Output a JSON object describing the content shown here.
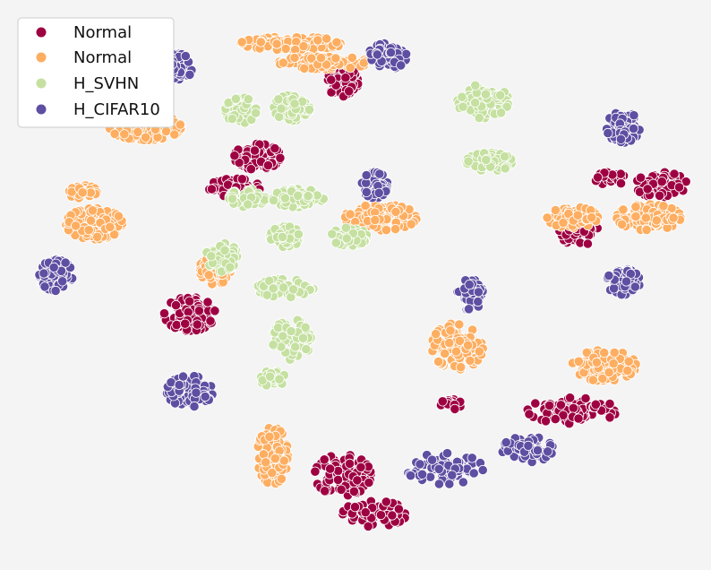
{
  "chart_data": {
    "type": "scatter",
    "title": "",
    "xlabel": "",
    "ylabel": "",
    "grid": false,
    "axes_visible": false,
    "legend_placement": "top-left",
    "background": "#f4f4f4",
    "series": [
      {
        "name": "Normal",
        "color": "#9e0142",
        "clusters": [
          {
            "cx": -0.93,
            "cy": 0.87,
            "rx": 0.12,
            "ry": 0.05,
            "n": 55
          },
          {
            "cx": 0.45,
            "cy": 0.7,
            "rx": 0.12,
            "ry": 0.12,
            "n": 80
          },
          {
            "cx": -0.22,
            "cy": 0.12,
            "rx": 0.18,
            "ry": 0.1,
            "n": 110
          },
          {
            "cx": -0.4,
            "cy": -0.12,
            "rx": 0.2,
            "ry": 0.07,
            "n": 70
          },
          {
            "cx": 2.3,
            "cy": -0.45,
            "rx": 0.15,
            "ry": 0.12,
            "n": 70
          },
          {
            "cx": 2.55,
            "cy": -0.05,
            "rx": 0.12,
            "ry": 0.05,
            "n": 35
          },
          {
            "cx": 2.95,
            "cy": -0.1,
            "rx": 0.2,
            "ry": 0.1,
            "n": 60
          },
          {
            "cx": -0.75,
            "cy": -1.1,
            "rx": 0.2,
            "ry": 0.13,
            "n": 100
          },
          {
            "cx": 1.3,
            "cy": -1.8,
            "rx": 0.08,
            "ry": 0.04,
            "n": 25
          },
          {
            "cx": 2.25,
            "cy": -1.85,
            "rx": 0.35,
            "ry": 0.1,
            "n": 95
          },
          {
            "cx": 0.45,
            "cy": -2.35,
            "rx": 0.22,
            "ry": 0.16,
            "n": 100
          },
          {
            "cx": 0.7,
            "cy": -2.65,
            "rx": 0.25,
            "ry": 0.1,
            "n": 60
          }
        ]
      },
      {
        "name": "Normal",
        "color": "#fdae61",
        "clusters": [
          {
            "cx": 0.05,
            "cy": 1.0,
            "rx": 0.4,
            "ry": 0.05,
            "n": 110
          },
          {
            "cx": 0.3,
            "cy": 0.85,
            "rx": 0.35,
            "ry": 0.05,
            "n": 90
          },
          {
            "cx": -1.1,
            "cy": 0.35,
            "rx": 0.28,
            "ry": 0.1,
            "n": 130
          },
          {
            "cx": 0.75,
            "cy": -0.35,
            "rx": 0.28,
            "ry": 0.1,
            "n": 100
          },
          {
            "cx": -1.6,
            "cy": -0.15,
            "rx": 0.12,
            "ry": 0.05,
            "n": 40
          },
          {
            "cx": -1.5,
            "cy": -0.4,
            "rx": 0.22,
            "ry": 0.12,
            "n": 120
          },
          {
            "cx": 2.25,
            "cy": -0.35,
            "rx": 0.2,
            "ry": 0.08,
            "n": 80
          },
          {
            "cx": 2.85,
            "cy": -0.35,
            "rx": 0.25,
            "ry": 0.1,
            "n": 110
          },
          {
            "cx": -0.55,
            "cy": -0.75,
            "rx": 0.12,
            "ry": 0.12,
            "n": 80
          },
          {
            "cx": 1.35,
            "cy": -1.35,
            "rx": 0.2,
            "ry": 0.18,
            "n": 110
          },
          {
            "cx": 2.5,
            "cy": -1.5,
            "rx": 0.25,
            "ry": 0.12,
            "n": 100
          },
          {
            "cx": -0.1,
            "cy": -2.2,
            "rx": 0.12,
            "ry": 0.22,
            "n": 90
          }
        ]
      },
      {
        "name": "H_SVHN",
        "color": "#c5e0a0",
        "clusters": [
          {
            "cx": -0.35,
            "cy": 0.48,
            "rx": 0.12,
            "ry": 0.1,
            "n": 70
          },
          {
            "cx": 0.05,
            "cy": 0.5,
            "rx": 0.14,
            "ry": 0.1,
            "n": 70
          },
          {
            "cx": 1.55,
            "cy": 0.55,
            "rx": 0.2,
            "ry": 0.13,
            "n": 90
          },
          {
            "cx": 1.6,
            "cy": 0.08,
            "rx": 0.18,
            "ry": 0.07,
            "n": 70
          },
          {
            "cx": -0.3,
            "cy": -0.2,
            "rx": 0.14,
            "ry": 0.07,
            "n": 60
          },
          {
            "cx": 0.0,
            "cy": -0.5,
            "rx": 0.12,
            "ry": 0.08,
            "n": 60
          },
          {
            "cx": 0.1,
            "cy": -0.2,
            "rx": 0.2,
            "ry": 0.07,
            "n": 80
          },
          {
            "cx": 0.5,
            "cy": -0.5,
            "rx": 0.14,
            "ry": 0.07,
            "n": 50
          },
          {
            "cx": -0.5,
            "cy": -0.65,
            "rx": 0.12,
            "ry": 0.12,
            "n": 60
          },
          {
            "cx": 0.0,
            "cy": -0.9,
            "rx": 0.22,
            "ry": 0.07,
            "n": 60
          },
          {
            "cx": 0.05,
            "cy": -1.3,
            "rx": 0.15,
            "ry": 0.16,
            "n": 60
          },
          {
            "cx": -0.1,
            "cy": -1.6,
            "rx": 0.1,
            "ry": 0.06,
            "n": 25
          }
        ]
      },
      {
        "name": "H_CIFAR10",
        "color": "#5e4fa2",
        "clusters": [
          {
            "cx": -0.85,
            "cy": 0.82,
            "rx": 0.13,
            "ry": 0.1,
            "n": 80
          },
          {
            "cx": 0.8,
            "cy": 0.9,
            "rx": 0.15,
            "ry": 0.1,
            "n": 80
          },
          {
            "cx": 2.65,
            "cy": 0.35,
            "rx": 0.13,
            "ry": 0.12,
            "n": 70
          },
          {
            "cx": 0.7,
            "cy": -0.1,
            "rx": 0.1,
            "ry": 0.1,
            "n": 50
          },
          {
            "cx": -1.8,
            "cy": -0.8,
            "rx": 0.13,
            "ry": 0.12,
            "n": 80
          },
          {
            "cx": 2.65,
            "cy": -0.85,
            "rx": 0.13,
            "ry": 0.1,
            "n": 70
          },
          {
            "cx": 1.45,
            "cy": -0.95,
            "rx": 0.1,
            "ry": 0.12,
            "n": 50
          },
          {
            "cx": -0.75,
            "cy": -1.7,
            "rx": 0.18,
            "ry": 0.12,
            "n": 80
          },
          {
            "cx": 1.25,
            "cy": -2.3,
            "rx": 0.3,
            "ry": 0.12,
            "n": 80
          },
          {
            "cx": 1.9,
            "cy": -2.15,
            "rx": 0.2,
            "ry": 0.1,
            "n": 60
          }
        ]
      }
    ],
    "xlim": [
      -2.0,
      3.1
    ],
    "ylim": [
      -2.85,
      1.1
    ]
  }
}
